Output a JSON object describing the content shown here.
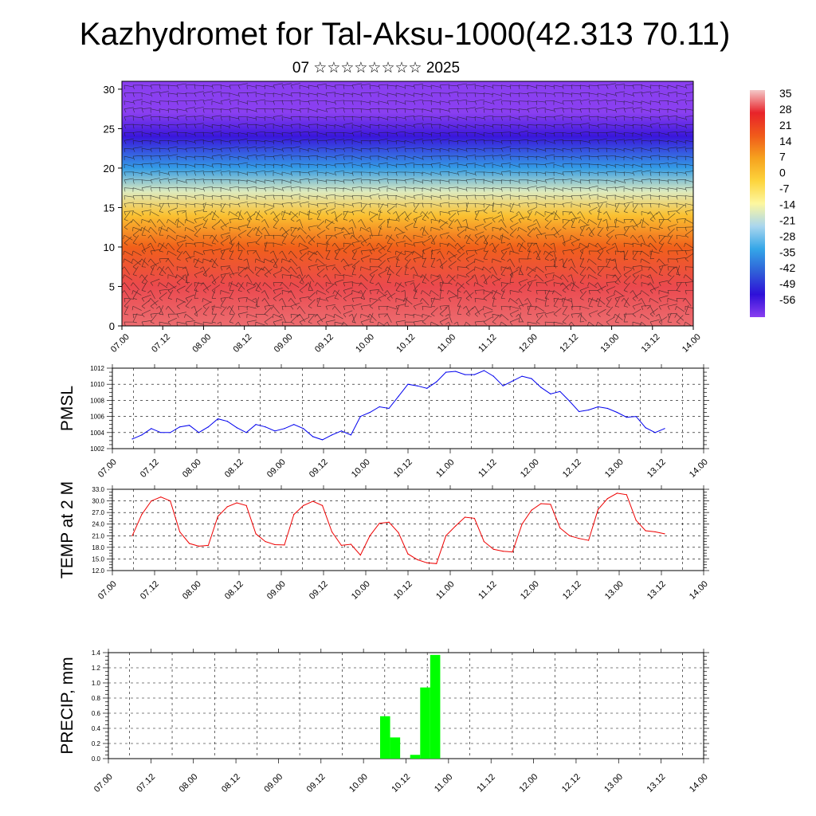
{
  "header": {
    "title": "Kazhydromet for Tal-Aksu-1000(42.313 70.11)",
    "subtitle": "07 ☆☆☆☆☆☆☆☆ 2025"
  },
  "time_ticks": [
    "07.00",
    "07.12",
    "08.00",
    "08.12",
    "09.00",
    "09.12",
    "10.00",
    "10.12",
    "11.00",
    "11.12",
    "12.00",
    "12.12",
    "13.00",
    "13.12",
    "14.00"
  ],
  "chart_data": [
    {
      "type": "heatmap",
      "ylim": [
        0,
        31
      ],
      "yticks": [
        "0",
        "5",
        "10",
        "15",
        "20",
        "25",
        "30"
      ],
      "colorbar": {
        "labels": [
          "35",
          "28",
          "21",
          "14",
          "7",
          "0",
          "-7",
          "-14",
          "-21",
          "-28",
          "-35",
          "-42",
          "-49",
          "-56"
        ],
        "colors": [
          "#f4c8c8",
          "#e8232a",
          "#f05a1a",
          "#f6a21e",
          "#fdd43c",
          "#fdf7a0",
          "#a9d6ee",
          "#34a6e8",
          "#2f5fd8",
          "#2e10d8",
          "#8a3ff0"
        ]
      },
      "temperature_profile": [
        {
          "level": 0,
          "value": 30
        },
        {
          "level": 5,
          "value": 28
        },
        {
          "level": 10,
          "value": 16
        },
        {
          "level": 14,
          "value": 2
        },
        {
          "level": 17,
          "value": -14
        },
        {
          "level": 20,
          "value": -30
        },
        {
          "level": 24,
          "value": -48
        },
        {
          "level": 27,
          "value": -56
        },
        {
          "level": 31,
          "value": -58
        }
      ]
    },
    {
      "type": "line",
      "ylabel": "PMSL",
      "ylim": [
        1002,
        1012
      ],
      "yticks": [
        "1002",
        "1004",
        "1006",
        "1008",
        "1010",
        "1012"
      ],
      "color": "#0000ee",
      "values": [
        1003.2,
        1003.7,
        1004.5,
        1004.0,
        1004.0,
        1004.7,
        1004.9,
        1004.0,
        1004.7,
        1005.7,
        1005.4,
        1004.6,
        1004.0,
        1005.0,
        1004.7,
        1004.2,
        1004.5,
        1005.0,
        1004.5,
        1003.5,
        1003.1,
        1003.7,
        1004.2,
        1003.7,
        1006.0,
        1006.5,
        1007.2,
        1007.0,
        1008.5,
        1010.0,
        1009.8,
        1009.5,
        1010.3,
        1011.5,
        1011.6,
        1011.2,
        1011.2,
        1011.7,
        1011.0,
        1009.8,
        1010.4,
        1011.0,
        1010.7,
        1009.6,
        1008.8,
        1009.1,
        1007.9,
        1006.6,
        1006.8,
        1007.2,
        1007.0,
        1006.5,
        1005.9,
        1006.0,
        1004.6,
        1004.0,
        1004.5
      ]
    },
    {
      "type": "line",
      "ylabel": "TEMP at 2 M",
      "ylim": [
        12,
        33
      ],
      "yticks": [
        "12.0",
        "15.0",
        "18.0",
        "21.0",
        "24.0",
        "27.0",
        "30.0",
        "33.0"
      ],
      "color": "#ee0000",
      "values": [
        21.0,
        26.5,
        30.0,
        31.0,
        30.0,
        22.0,
        19.0,
        18.3,
        18.5,
        26.0,
        28.5,
        29.5,
        28.8,
        21.5,
        19.5,
        18.7,
        18.6,
        26.5,
        28.8,
        29.9,
        28.8,
        22.0,
        18.5,
        18.8,
        16.0,
        21.0,
        24.2,
        24.5,
        21.8,
        16.3,
        14.8,
        14.0,
        13.8,
        21.0,
        23.5,
        25.8,
        25.5,
        19.5,
        17.5,
        17.0,
        16.8,
        24.0,
        27.6,
        29.3,
        29.1,
        23.0,
        21.0,
        20.3,
        19.8,
        27.8,
        30.6,
        32.0,
        31.6,
        25.0,
        22.3,
        22.0,
        21.5
      ]
    },
    {
      "type": "bar",
      "ylabel": "PRECIP, mm",
      "ylim": [
        0,
        1.4
      ],
      "yticks": [
        "0.0",
        "0.2",
        "0.4",
        "0.6",
        "0.8",
        "1.0",
        "1.2",
        "1.4"
      ],
      "color": "#00ff00",
      "bars": [
        {
          "x": 25,
          "value": 0.56
        },
        {
          "x": 26,
          "value": 0.28
        },
        {
          "x": 28,
          "value": 0.05
        },
        {
          "x": 29,
          "value": 0.94
        },
        {
          "x": 30,
          "value": 1.37
        }
      ]
    }
  ]
}
